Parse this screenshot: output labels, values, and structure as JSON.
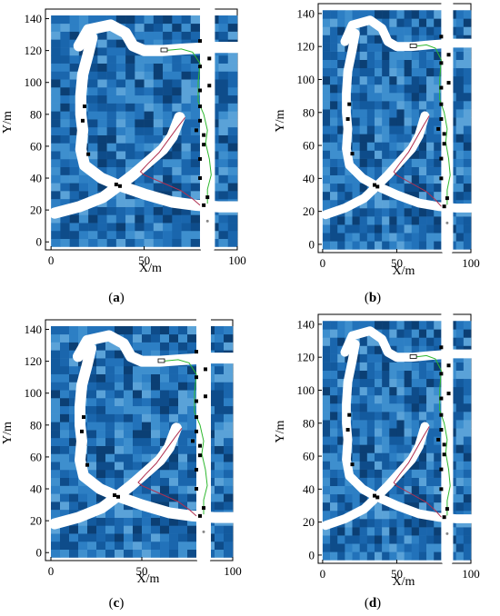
{
  "colors": {
    "heat_palette": [
      "#0b3f74",
      "#0e4c8a",
      "#135a9e",
      "#1a66ad",
      "#2272ba",
      "#2d7fc4",
      "#3e8fce",
      "#5aa2d8"
    ],
    "road": "#ffffff",
    "path_green": "#2eb82e",
    "path_red": "#b03050",
    "obstacle": "#000000"
  },
  "chart_data": [
    {
      "type": "heatmap",
      "caption_letter": "a",
      "xlabel": "X/m",
      "ylabel": "Y/m",
      "xlim": [
        -3,
        100
      ],
      "ylim": [
        -5,
        146
      ],
      "xticks": [
        0,
        50,
        100
      ],
      "yticks": [
        0,
        20,
        40,
        60,
        80,
        100,
        120,
        140
      ],
      "grid": false
    },
    {
      "type": "heatmap",
      "caption_letter": "b",
      "xlabel": "X/m",
      "ylabel": "Y/m",
      "xlim": [
        -3,
        100
      ],
      "ylim": [
        -5,
        146
      ],
      "xticks": [
        0,
        50,
        100
      ],
      "yticks": [
        0,
        20,
        40,
        60,
        80,
        100,
        120,
        140
      ],
      "grid": false
    },
    {
      "type": "heatmap",
      "caption_letter": "c",
      "xlabel": "X/m",
      "ylabel": "Y/m",
      "xlim": [
        -3,
        100
      ],
      "ylim": [
        -5,
        146
      ],
      "xticks": [
        0,
        50,
        100
      ],
      "yticks": [
        0,
        20,
        40,
        60,
        80,
        100,
        120,
        140
      ],
      "grid": false
    },
    {
      "type": "heatmap",
      "caption_letter": "d",
      "xlabel": "X/m",
      "ylabel": "Y/m",
      "xlim": [
        -3,
        100
      ],
      "ylim": [
        -5,
        146
      ],
      "xticks": [
        0,
        50,
        100
      ],
      "yticks": [
        0,
        20,
        40,
        60,
        80,
        100,
        120,
        140
      ],
      "grid": false
    }
  ],
  "map_features": {
    "cell_size_m": 5,
    "roads": [
      {
        "name": "vertical-road",
        "points": [
          [
            84,
            146
          ],
          [
            84,
            -3
          ]
        ],
        "width_m": 8
      },
      {
        "name": "upper-arc-road",
        "points": [
          [
            15,
            123
          ],
          [
            20,
            133
          ],
          [
            32,
            136
          ],
          [
            40,
            131
          ],
          [
            44,
            123
          ],
          [
            50,
            120
          ],
          [
            60,
            120
          ],
          [
            72,
            121
          ],
          [
            88,
            122
          ],
          [
            100,
            122
          ]
        ],
        "width_m": 6
      },
      {
        "name": "left-curve-road",
        "points": [
          [
            22,
            128
          ],
          [
            20,
            118
          ],
          [
            17,
            105
          ],
          [
            16,
            92
          ],
          [
            16,
            80
          ],
          [
            17,
            70
          ],
          [
            16,
            58
          ],
          [
            18,
            48
          ],
          [
            27,
            40
          ],
          [
            35,
            36
          ],
          [
            50,
            30
          ],
          [
            65,
            25
          ],
          [
            78,
            23
          ],
          [
            90,
            22
          ],
          [
            100,
            22
          ]
        ],
        "width_m": 6
      },
      {
        "name": "diagonal-road",
        "points": [
          [
            2,
            18
          ],
          [
            15,
            22
          ],
          [
            28,
            28
          ],
          [
            35,
            34
          ],
          [
            44,
            42
          ],
          [
            52,
            50
          ],
          [
            60,
            58
          ],
          [
            65,
            66
          ],
          [
            69,
            78
          ]
        ],
        "width_m": 6
      }
    ],
    "obstacles": [
      [
        80,
        126
      ],
      [
        85,
        115
      ],
      [
        80,
        110
      ],
      [
        85,
        98
      ],
      [
        80,
        95
      ],
      [
        80,
        85
      ],
      [
        80,
        76
      ],
      [
        78,
        70
      ],
      [
        82,
        67
      ],
      [
        82,
        61
      ],
      [
        80,
        52
      ],
      [
        80,
        40
      ],
      [
        84,
        28
      ],
      [
        82,
        23
      ],
      [
        18,
        85
      ],
      [
        17,
        76
      ],
      [
        20,
        55
      ],
      [
        35,
        36
      ],
      [
        37,
        35
      ]
    ],
    "green_path": [
      [
        61,
        120
      ],
      [
        70,
        121
      ],
      [
        76,
        119
      ],
      [
        80,
        112
      ],
      [
        79,
        100
      ],
      [
        79,
        88
      ],
      [
        82,
        80
      ],
      [
        84,
        70
      ],
      [
        83,
        62
      ],
      [
        85,
        52
      ],
      [
        86,
        42
      ],
      [
        84,
        33
      ],
      [
        84,
        24
      ]
    ],
    "red_path": [
      [
        72,
        78
      ],
      [
        68,
        72
      ],
      [
        63,
        64
      ],
      [
        58,
        56
      ],
      [
        52,
        49
      ],
      [
        48,
        44
      ],
      [
        50,
        42
      ],
      [
        58,
        38
      ],
      [
        70,
        32
      ],
      [
        76,
        27
      ],
      [
        80,
        23
      ]
    ],
    "end_marker": [
      84,
      13
    ]
  }
}
